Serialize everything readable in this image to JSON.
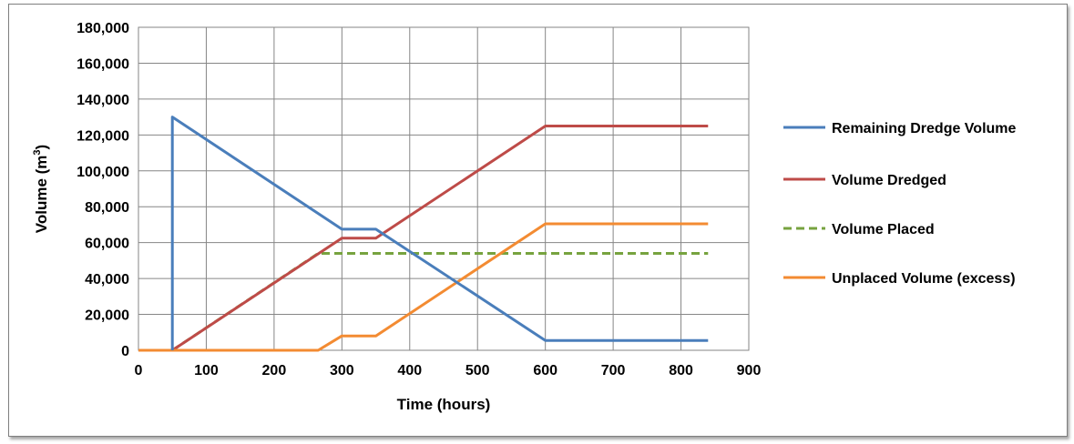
{
  "chart_data": {
    "type": "line",
    "xlabel": "Time (hours)",
    "ylabel": "Volume (m",
    "ylabel_sup": "3",
    "ylabel_end": ")",
    "xlim": [
      0,
      900
    ],
    "ylim": [
      0,
      180000
    ],
    "xticks": [
      0,
      100,
      200,
      300,
      400,
      500,
      600,
      700,
      800,
      900
    ],
    "yticks": [
      0,
      20000,
      40000,
      60000,
      80000,
      100000,
      120000,
      140000,
      160000,
      180000
    ],
    "xtick_labels": [
      "0",
      "100",
      "200",
      "300",
      "400",
      "500",
      "600",
      "700",
      "800",
      "900"
    ],
    "ytick_labels": [
      "0",
      "20,000",
      "40,000",
      "60,000",
      "80,000",
      "100,000",
      "120,000",
      "140,000",
      "160,000",
      "180,000"
    ],
    "grid": true,
    "legend_position": "right",
    "series": [
      {
        "name": "Remaining Dredge Volume",
        "color": "#4a7ebb",
        "dashed": false,
        "points": [
          [
            50,
            0
          ],
          [
            50,
            130000
          ],
          [
            300,
            67500
          ],
          [
            350,
            67500
          ],
          [
            600,
            5500
          ],
          [
            840,
            5500
          ]
        ]
      },
      {
        "name": "Volume Dredged",
        "color": "#be4b48",
        "dashed": false,
        "points": [
          [
            50,
            0
          ],
          [
            300,
            62500
          ],
          [
            350,
            62500
          ],
          [
            600,
            125000
          ],
          [
            840,
            125000
          ]
        ]
      },
      {
        "name": "Volume Placed",
        "color": "#77a33f",
        "dashed": true,
        "points": [
          [
            50,
            0
          ],
          [
            265,
            54000
          ],
          [
            840,
            54000
          ]
        ]
      },
      {
        "name": "Unplaced Volume (excess)",
        "color": "#f38b32",
        "dashed": false,
        "points": [
          [
            0,
            0
          ],
          [
            265,
            0
          ],
          [
            300,
            8000
          ],
          [
            350,
            8000
          ],
          [
            600,
            70500
          ],
          [
            840,
            70500
          ]
        ]
      }
    ]
  }
}
